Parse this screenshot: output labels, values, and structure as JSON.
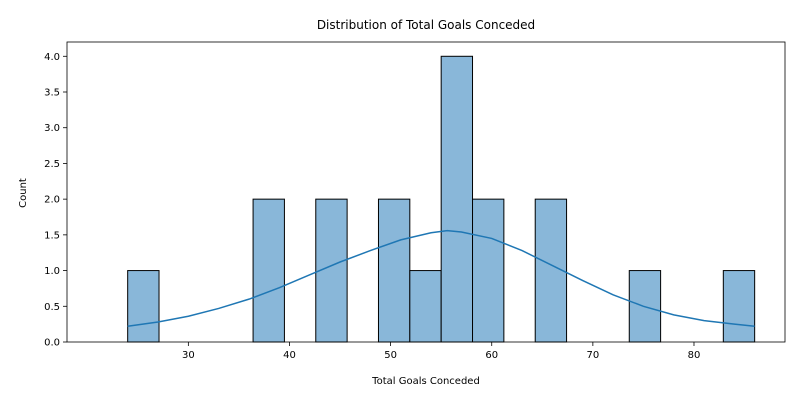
{
  "chart_data": {
    "type": "bar",
    "title": "Distribution of Total Goals Conceded",
    "xlabel": "Total Goals Conceded",
    "ylabel": "Count",
    "xlim": [
      18,
      89
    ],
    "ylim": [
      0,
      4.2
    ],
    "xticks": [
      30,
      40,
      50,
      60,
      70,
      80
    ],
    "xtick_labels": [
      "30",
      "40",
      "50",
      "60",
      "70",
      "80"
    ],
    "yticks": [
      0,
      0.5,
      1,
      1.5,
      2,
      2.5,
      3,
      3.5,
      4
    ],
    "ytick_labels": [
      "0.0",
      "0.5",
      "1.0",
      "1.5",
      "2.0",
      "2.5",
      "3.0",
      "3.5",
      "4.0"
    ],
    "bins": [
      {
        "start": 24.0,
        "end": 27.1,
        "count": 1
      },
      {
        "start": 36.4,
        "end": 39.5,
        "count": 2
      },
      {
        "start": 42.6,
        "end": 45.7,
        "count": 2
      },
      {
        "start": 48.8,
        "end": 51.9,
        "count": 2
      },
      {
        "start": 51.9,
        "end": 55.0,
        "count": 1
      },
      {
        "start": 55.0,
        "end": 58.1,
        "count": 4
      },
      {
        "start": 58.1,
        "end": 61.2,
        "count": 2
      },
      {
        "start": 64.3,
        "end": 67.4,
        "count": 2
      },
      {
        "start": 73.6,
        "end": 76.7,
        "count": 1
      },
      {
        "start": 82.9,
        "end": 86.0,
        "count": 1
      }
    ],
    "kde": {
      "x": [
        24,
        27,
        30,
        33,
        36,
        39,
        42,
        45,
        48,
        51,
        54,
        55.6,
        57,
        60,
        63,
        66,
        69,
        72,
        75,
        78,
        81,
        84,
        86
      ],
      "y": [
        0.22,
        0.28,
        0.36,
        0.47,
        0.6,
        0.76,
        0.94,
        1.12,
        1.28,
        1.43,
        1.53,
        1.56,
        1.54,
        1.45,
        1.28,
        1.07,
        0.86,
        0.66,
        0.5,
        0.38,
        0.3,
        0.25,
        0.22
      ]
    },
    "grid": false,
    "colors": {
      "bar_fill": "#89b7d9",
      "bar_edge": "#000000",
      "kde_line": "#1f77b4"
    }
  }
}
